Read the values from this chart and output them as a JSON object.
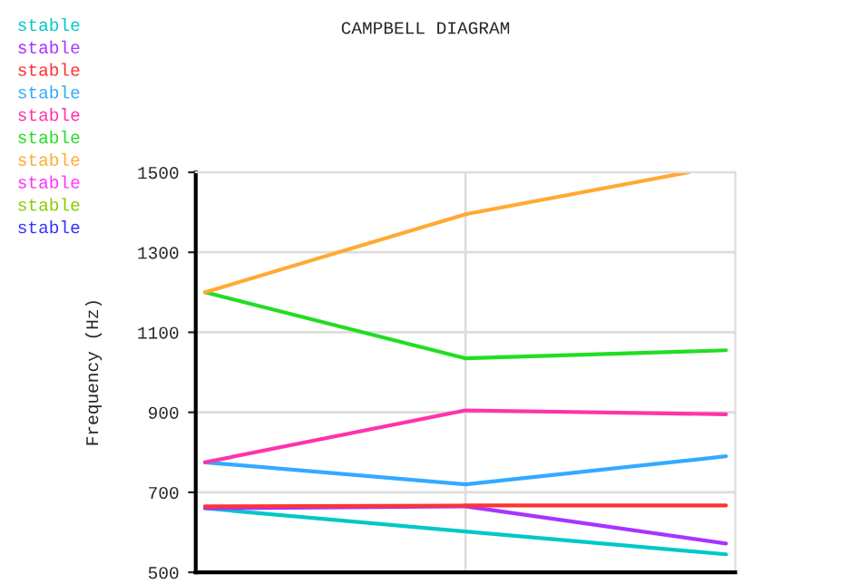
{
  "chart_data": {
    "type": "line",
    "title": "CAMPBELL DIAGRAM",
    "ylabel": "Frequency (Hz)",
    "categories": [
      null,
      null,
      null,
      null,
      null,
      null,
      null,
      null,
      null,
      null,
      null,
      null,
      null,
      null,
      null,
      null,
      null,
      null,
      null,
      null,
      null,
      null,
      null,
      null,
      null,
      null,
      null,
      null,
      null
    ],
    "ylim": [
      500,
      1500
    ],
    "yticks": [
      500,
      700,
      900,
      1100,
      1300,
      1500
    ],
    "grid": true,
    "line_style": "solid",
    "series": [
      {
        "name": "stable",
        "color": "#00c8c8",
        "values": [
          660,
          null,
          null,
          null,
          null,
          null,
          null,
          null,
          null,
          null,
          null,
          null,
          null,
          null,
          602,
          null,
          null,
          null,
          null,
          null,
          null,
          null,
          null,
          null,
          null,
          null,
          null,
          null,
          545
        ]
      },
      {
        "name": "stable",
        "color": "#aa33ff",
        "values": [
          660,
          null,
          null,
          null,
          null,
          null,
          null,
          null,
          null,
          null,
          null,
          null,
          null,
          null,
          665,
          null,
          null,
          null,
          null,
          null,
          null,
          null,
          null,
          null,
          null,
          null,
          null,
          null,
          572
        ]
      },
      {
        "name": "stable",
        "color": "#ff3333",
        "values": [
          665,
          null,
          null,
          null,
          null,
          null,
          null,
          null,
          null,
          null,
          null,
          null,
          null,
          null,
          667,
          null,
          null,
          null,
          null,
          null,
          null,
          null,
          null,
          null,
          null,
          null,
          null,
          null,
          667
        ]
      },
      {
        "name": "stable",
        "color": "#33aaff",
        "values": [
          775,
          null,
          null,
          null,
          null,
          null,
          null,
          null,
          null,
          null,
          null,
          null,
          null,
          null,
          720,
          null,
          null,
          null,
          null,
          null,
          null,
          null,
          null,
          null,
          null,
          null,
          null,
          null,
          790
        ]
      },
      {
        "name": "stable",
        "color": "#ff33aa",
        "values": [
          775,
          null,
          null,
          null,
          null,
          null,
          null,
          null,
          null,
          null,
          null,
          null,
          null,
          null,
          905,
          null,
          null,
          null,
          null,
          null,
          null,
          null,
          null,
          null,
          null,
          null,
          null,
          null,
          895
        ]
      },
      {
        "name": "stable",
        "color": "#22dd22",
        "values": [
          1200,
          null,
          null,
          null,
          null,
          null,
          null,
          null,
          null,
          null,
          null,
          null,
          null,
          null,
          1035,
          null,
          null,
          null,
          null,
          null,
          null,
          null,
          null,
          null,
          null,
          null,
          null,
          null,
          1055
        ]
      },
      {
        "name": "stable",
        "color": "#ffaa33",
        "values": [
          1200,
          null,
          null,
          null,
          null,
          null,
          null,
          null,
          null,
          null,
          null,
          null,
          null,
          null,
          1395,
          null,
          null,
          null,
          null,
          null,
          null,
          null,
          null,
          null,
          null,
          null,
          1500,
          null,
          null
        ]
      },
      {
        "name": "stable",
        "color": "#ff33ff",
        "values": [
          null,
          null,
          null,
          null,
          null,
          null,
          null,
          null,
          null,
          null,
          null,
          null,
          null,
          null,
          null,
          null,
          null,
          null,
          null,
          null,
          null,
          null,
          null,
          null,
          null,
          null,
          null,
          null,
          null
        ]
      },
      {
        "name": "stable",
        "color": "#88cc00",
        "values": [
          null,
          null,
          null,
          null,
          null,
          null,
          null,
          null,
          null,
          null,
          null,
          null,
          null,
          null,
          null,
          null,
          null,
          null,
          null,
          null,
          null,
          null,
          null,
          null,
          null,
          null,
          null,
          null,
          null
        ]
      },
      {
        "name": "stable",
        "color": "#3333ff",
        "values": [
          null,
          null,
          null,
          null,
          null,
          null,
          null,
          null,
          null,
          null,
          null,
          null,
          null,
          null,
          null,
          null,
          null,
          null,
          null,
          null,
          null,
          null,
          null,
          null,
          null,
          null,
          null,
          null,
          null
        ]
      }
    ]
  }
}
